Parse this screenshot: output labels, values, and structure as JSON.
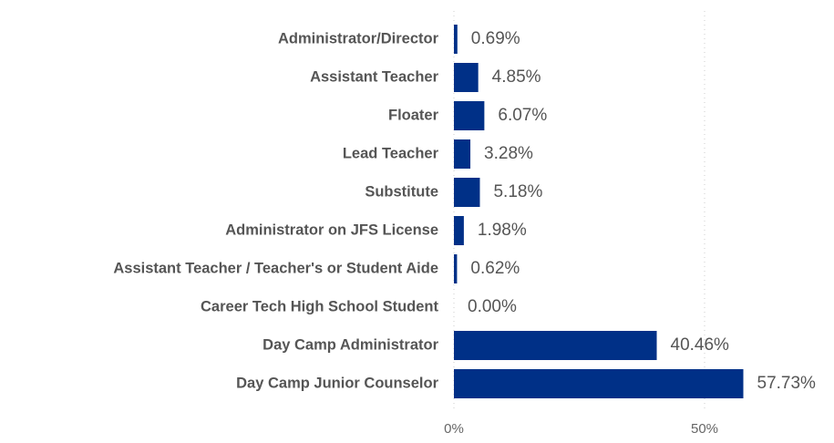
{
  "chart_data": {
    "type": "barh",
    "categories": [
      "Administrator/Director",
      "Assistant Teacher",
      "Floater",
      "Lead Teacher",
      "Substitute",
      "Administrator on JFS License",
      "Assistant Teacher / Teacher's or Student Aide",
      "Career Tech High School Student",
      "Day Camp Administrator",
      "Day Camp Junior Counselor"
    ],
    "values": [
      0.69,
      4.85,
      6.07,
      3.28,
      5.18,
      1.98,
      0.62,
      0.0,
      40.46,
      57.73
    ],
    "value_labels": [
      "0.69%",
      "4.85%",
      "6.07%",
      "3.28%",
      "5.18%",
      "1.98%",
      "0.62%",
      "0.00%",
      "40.46%",
      "57.73%"
    ],
    "color": "#003087",
    "xlim": [
      0,
      75
    ],
    "xticks": [
      {
        "value": 0,
        "label": "0%"
      },
      {
        "value": 50,
        "label": "50%"
      }
    ],
    "grid": true
  }
}
